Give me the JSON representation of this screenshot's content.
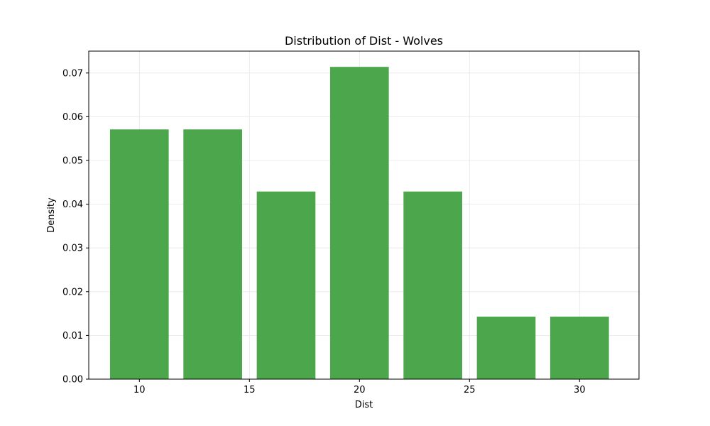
{
  "chart_data": {
    "type": "bar",
    "title": "Distribution of Dist - Wolves",
    "xlabel": "Dist",
    "ylabel": "Density",
    "x": [
      10,
      13.3333,
      16.6667,
      20,
      23.3333,
      26.6667,
      30
    ],
    "bin_width": 3.3333,
    "values": [
      0.0571,
      0.0571,
      0.0429,
      0.0714,
      0.0429,
      0.0143,
      0.0143
    ],
    "xlim": [
      7.7,
      32.7
    ],
    "ylim": [
      0,
      0.075
    ],
    "xticks": [
      10,
      15,
      20,
      25,
      30
    ],
    "xtick_labels": [
      "10",
      "15",
      "20",
      "25",
      "30"
    ],
    "yticks": [
      0,
      0.01,
      0.02,
      0.03,
      0.04,
      0.05,
      0.06,
      0.07
    ],
    "ytick_labels": [
      "0.00",
      "0.01",
      "0.02",
      "0.03",
      "0.04",
      "0.05",
      "0.06",
      "0.07"
    ],
    "grid": true,
    "bar_color": "#4ca64c"
  }
}
